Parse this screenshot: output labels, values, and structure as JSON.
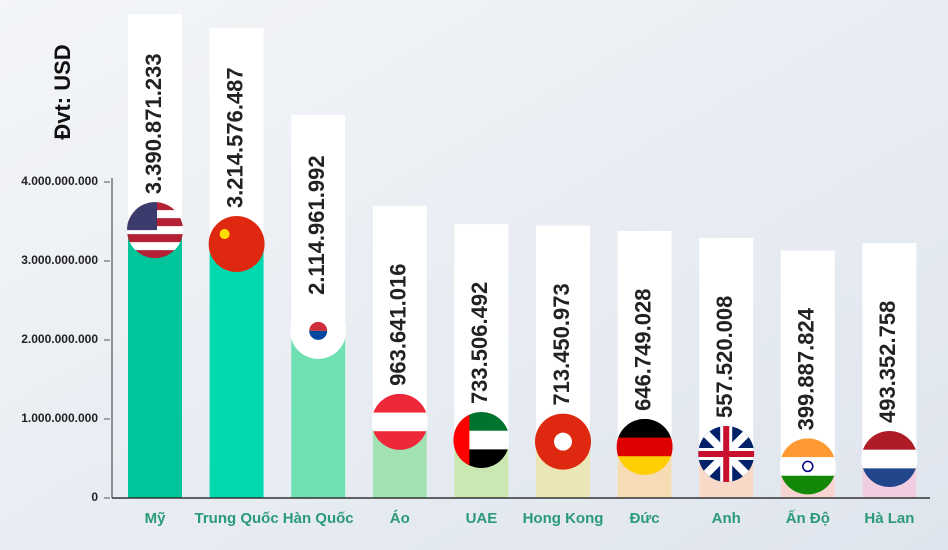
{
  "chart_data": {
    "type": "bar",
    "y_label": "Đvt: USD",
    "categories": [
      "Mỹ",
      "Trung Quốc",
      "Hàn Quốc",
      "Áo",
      "UAE",
      "Hong Kong",
      "Đức",
      "Anh",
      "Ấn Độ",
      "Hà Lan"
    ],
    "values": [
      3390871233,
      3214576487,
      2114961992,
      963641016,
      733506492,
      713450973,
      646749028,
      557520008,
      399887824,
      493352758
    ],
    "value_labels": [
      "3.390.871.233",
      "3.214.576.487",
      "2.114.961.992",
      "963.641.016",
      "733.506.492",
      "713.450.973",
      "646.749.028",
      "557.520.008",
      "399.887.824",
      "493.352.758"
    ],
    "colors": [
      "#00c49a",
      "#00d9ad",
      "#6ee0b2",
      "#a2e2b2",
      "#cce8b2",
      "#ebe6b6",
      "#f6dcb4",
      "#f8d8c6",
      "#f5d4d2",
      "#f0cde0"
    ],
    "ylim": [
      0,
      4000000000
    ],
    "yticks": [
      0,
      {
        "value": 1000000000,
        "label": "1.000.000.000"
      },
      {
        "value": 2000000000,
        "label": "2.000.000.000"
      },
      {
        "value": 3000000000,
        "label": "3.000.000.000"
      },
      {
        "value": 4000000000,
        "label": "4.000.000.000"
      }
    ]
  }
}
